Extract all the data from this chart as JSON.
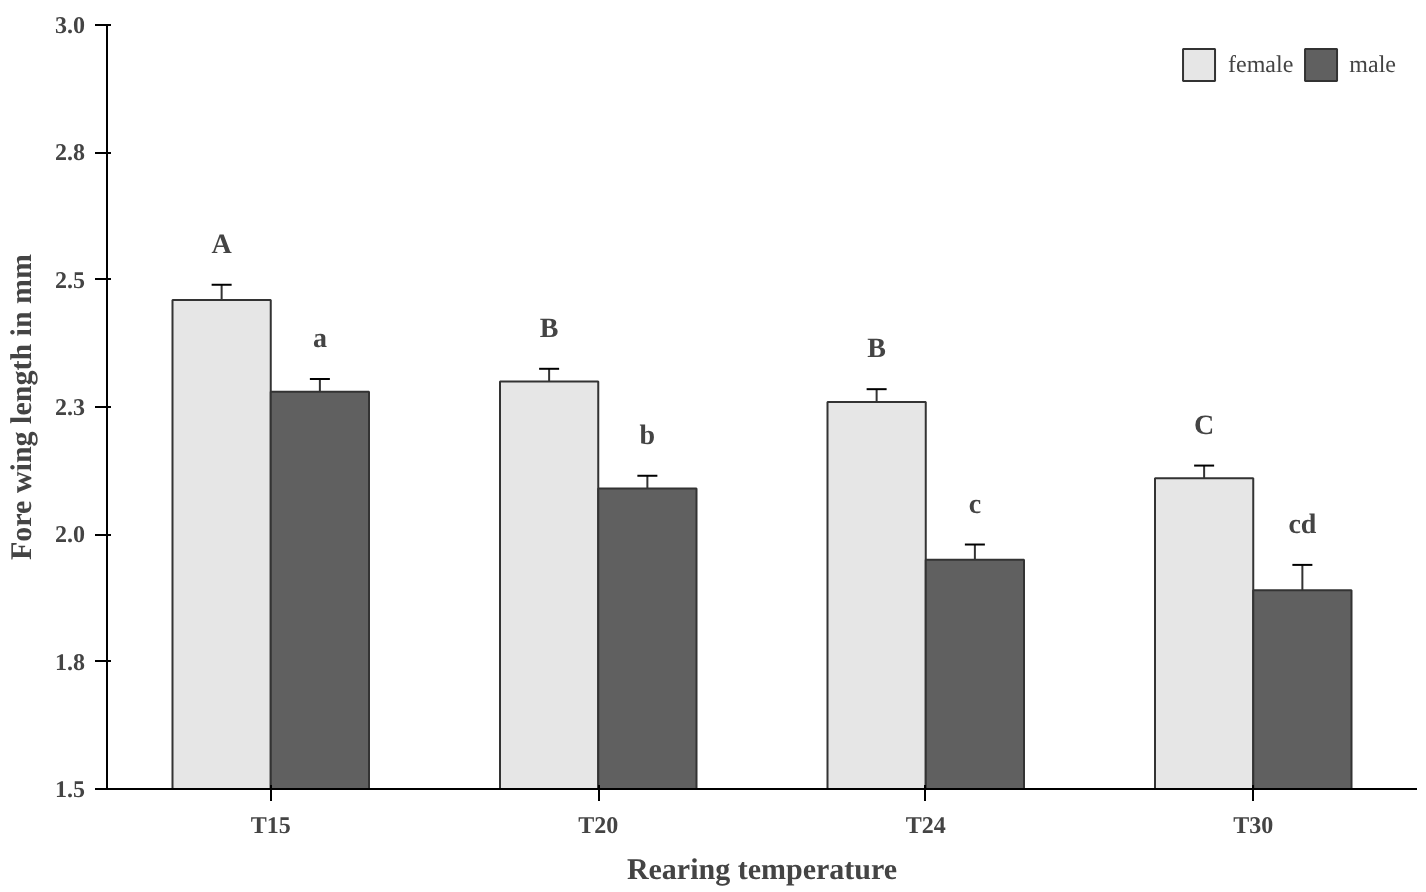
{
  "chart_data": {
    "type": "bar",
    "xlabel": "Rearing temperature",
    "ylabel": "Fore wing length in mm",
    "categories": [
      "T15",
      "T20",
      "T24",
      "T30"
    ],
    "series": [
      {
        "name": "female",
        "color": "#e6e6e6",
        "values": [
          2.46,
          2.3,
          2.26,
          2.11
        ],
        "errors": [
          0.03,
          0.025,
          0.025,
          0.025
        ],
        "value_labels": [
          "A",
          "B",
          "B",
          "C"
        ]
      },
      {
        "name": "male",
        "color": "#606060",
        "values": [
          2.28,
          2.09,
          1.95,
          1.89
        ],
        "errors": [
          0.025,
          0.025,
          0.03,
          0.05
        ],
        "value_labels": [
          "a",
          "b",
          "c",
          "cd"
        ]
      }
    ],
    "ylim": [
      1.5,
      3.0
    ],
    "yticks": [
      1.5,
      {
        "value": 1.75,
        "label": "1.8"
      },
      {
        "value": 2,
        "label": "2.0"
      },
      {
        "value": 2.25,
        "label": "2.3"
      },
      2.5,
      {
        "value": 2.75,
        "label": "2.8"
      },
      {
        "value": 3,
        "label": "3.0"
      }
    ],
    "legend": "top right",
    "grid": false
  }
}
